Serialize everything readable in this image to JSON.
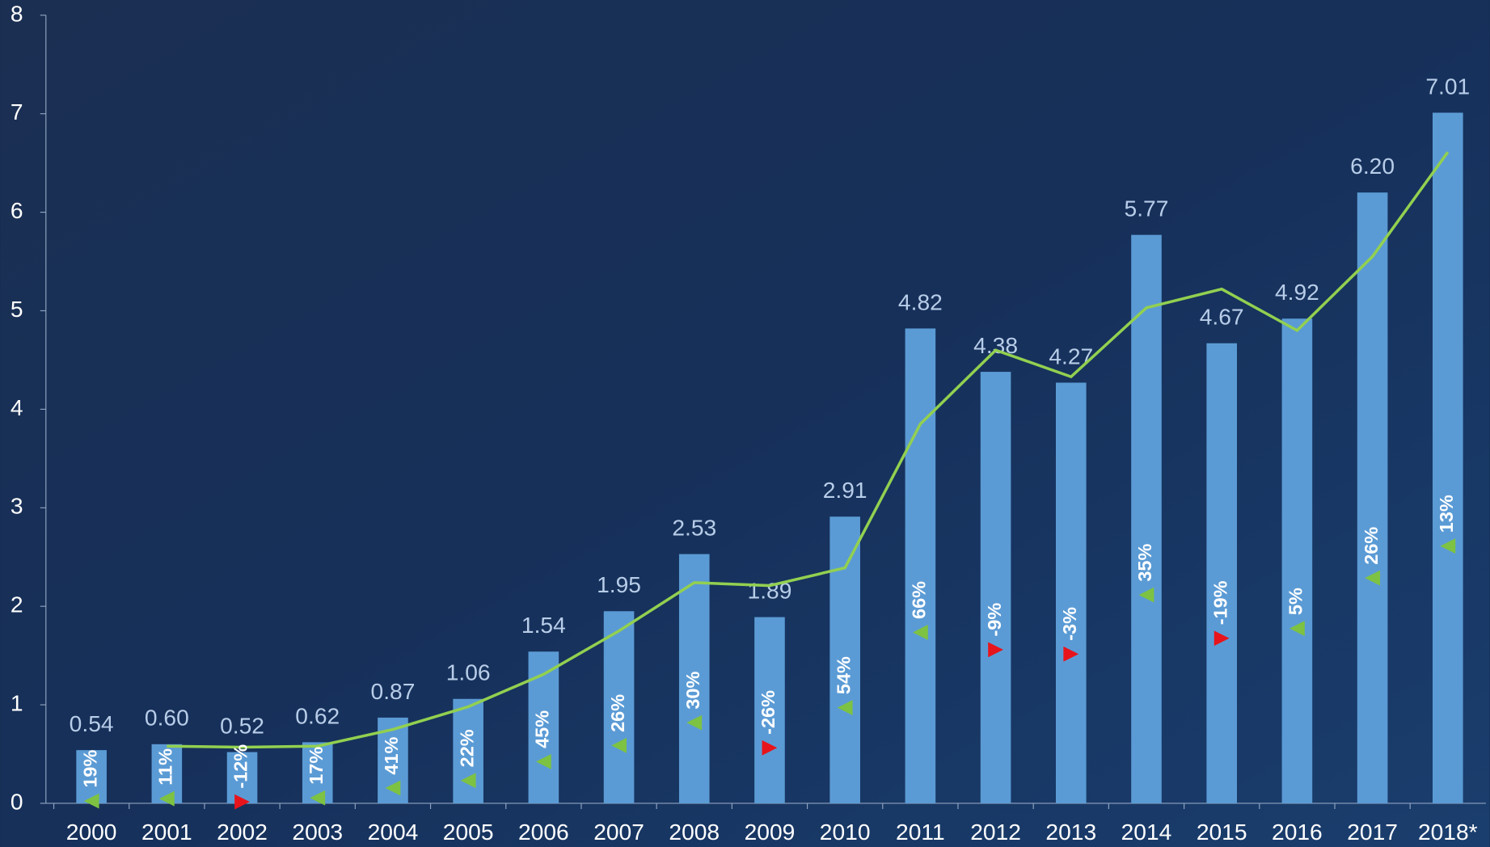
{
  "chart_data": {
    "type": "bar",
    "categories": [
      "2000",
      "2001",
      "2002",
      "2003",
      "2004",
      "2005",
      "2006",
      "2007",
      "2008",
      "2009",
      "2010",
      "2011",
      "2012",
      "2013",
      "2014",
      "2015",
      "2016",
      "2017",
      "2018*"
    ],
    "ylim": [
      0,
      8
    ],
    "yticks": [
      0,
      1,
      2,
      3,
      4,
      5,
      6,
      7,
      8
    ],
    "grid": false,
    "series": [
      {
        "type": "bar",
        "color": "#5b9bd5",
        "values": [
          0.54,
          0.6,
          0.52,
          0.62,
          0.87,
          1.06,
          1.54,
          1.95,
          2.53,
          1.89,
          2.91,
          4.82,
          4.38,
          4.27,
          5.77,
          4.67,
          4.92,
          6.2,
          7.01
        ],
        "value_labels": [
          "0.54",
          "0.60",
          "0.52",
          "0.62",
          "0.87",
          "1.06",
          "1.54",
          "1.95",
          "2.53",
          "1.89",
          "2.91",
          "4.82",
          "4.38",
          "4.27",
          "5.77",
          "4.67",
          "4.92",
          "6.20",
          "7.01"
        ]
      },
      {
        "type": "line",
        "color": "#92d050",
        "values": [
          null,
          0.58,
          0.57,
          0.58,
          0.75,
          0.98,
          1.31,
          1.75,
          2.24,
          2.21,
          2.39,
          3.85,
          4.6,
          4.33,
          5.03,
          5.22,
          4.8,
          5.55,
          6.61
        ]
      },
      {
        "type": "growth",
        "up_color": "#7dc242",
        "down_color": "#e8141c",
        "values": [
          19,
          11,
          -12,
          17,
          41,
          22,
          45,
          26,
          30,
          -26,
          54,
          66,
          -9,
          -3,
          35,
          -19,
          5,
          26,
          13
        ],
        "value_labels": [
          "19%",
          "11%",
          "-12%",
          "17%",
          "41%",
          "22%",
          "45%",
          "26%",
          "30%",
          "-26%",
          "54%",
          "66%",
          "-9%",
          "-3%",
          "35%",
          "-19%",
          "5%",
          "26%",
          "13%"
        ]
      }
    ]
  }
}
